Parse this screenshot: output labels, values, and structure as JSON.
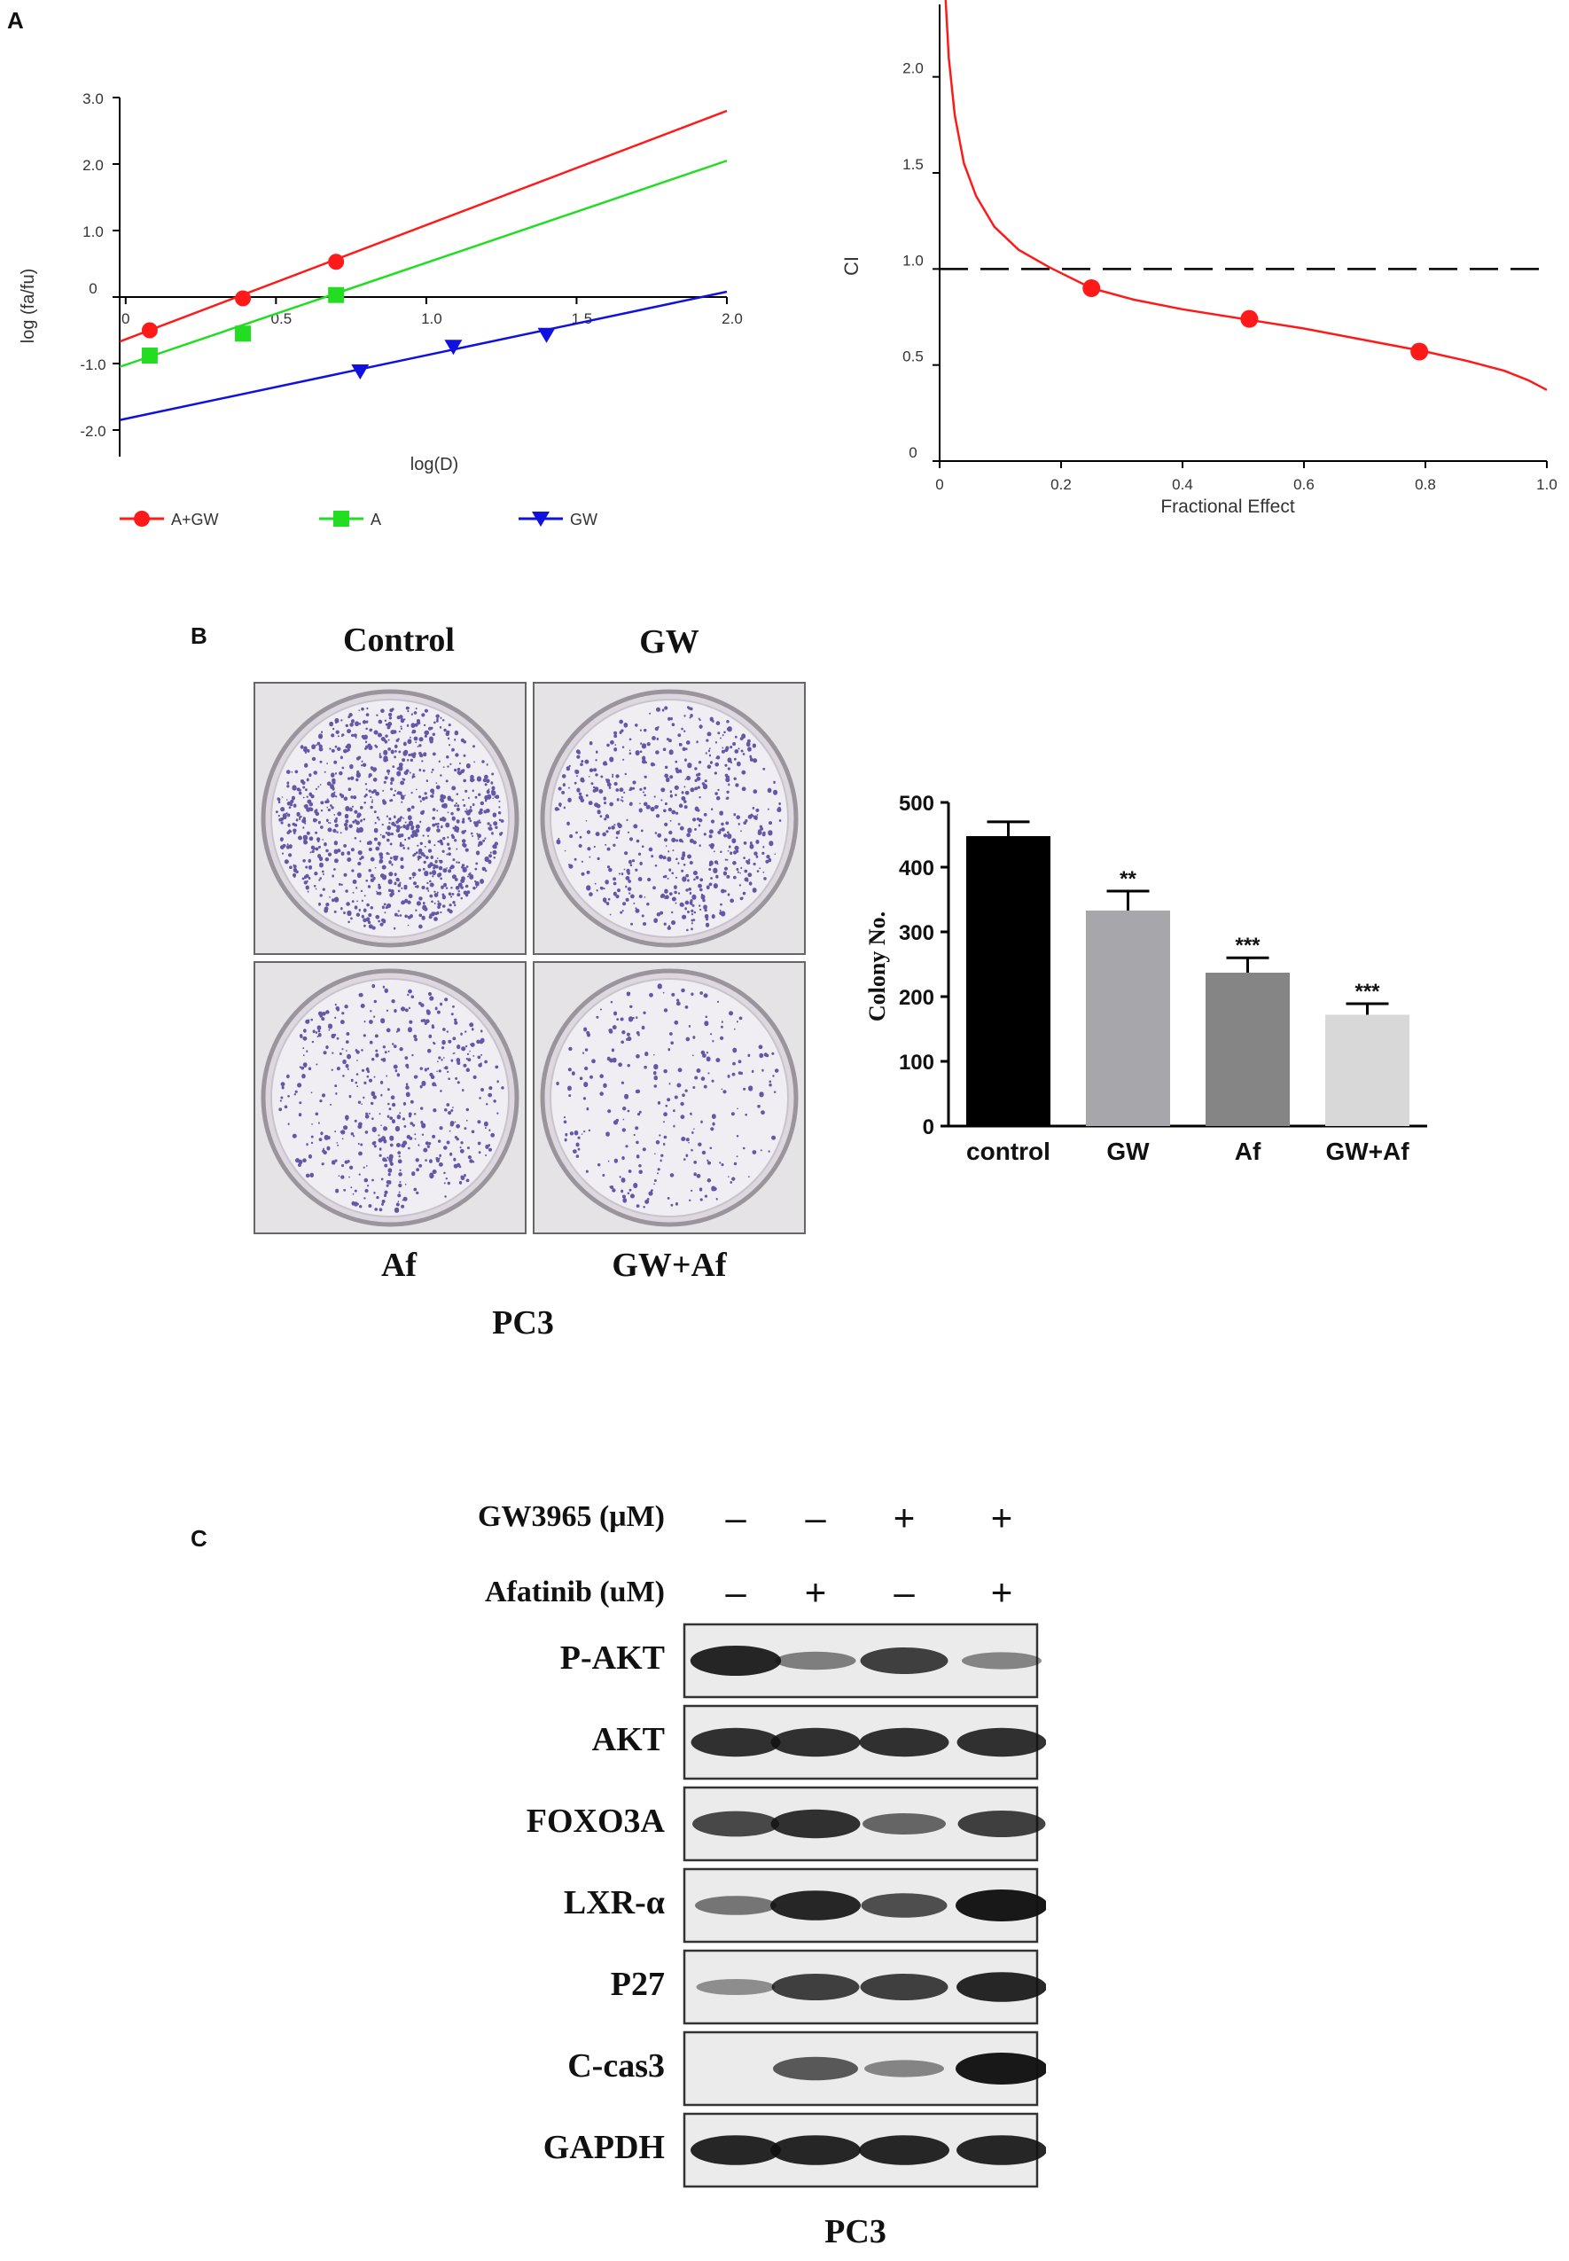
{
  "panels": {
    "a": "A",
    "b": "B",
    "c": "C"
  },
  "chart_data": [
    {
      "type": "line",
      "xlabel": "log(D)",
      "ylabel": "log (fa/fu)",
      "xlim": [
        -0.02,
        2.0
      ],
      "ylim": [
        -2.4,
        3.0
      ],
      "x_ticks": [
        "0",
        "0.5",
        "1.0",
        "1.5",
        "2.0"
      ],
      "y_ticks": [
        "3.0",
        "2.0",
        "1.0",
        "0",
        "-1.0",
        "-2.0"
      ],
      "legend_position": "bottom",
      "series": [
        {
          "name": "A+GW",
          "color": "#ff1a1a",
          "marker": "circle",
          "line": [
            [
              -0.02,
              -0.67
            ],
            [
              2.0,
              2.8
            ]
          ],
          "points": [
            [
              0.08,
              -0.5
            ],
            [
              0.39,
              -0.02
            ],
            [
              0.7,
              0.53
            ]
          ]
        },
        {
          "name": "A",
          "color": "#22dd22",
          "marker": "square",
          "line": [
            [
              -0.02,
              -1.05
            ],
            [
              2.0,
              2.05
            ]
          ],
          "points": [
            [
              0.08,
              -0.88
            ],
            [
              0.39,
              -0.55
            ],
            [
              0.7,
              0.03
            ]
          ]
        },
        {
          "name": "GW",
          "color": "#1010e0",
          "marker": "triangle-down",
          "line": [
            [
              -0.02,
              -1.85
            ],
            [
              2.0,
              0.08
            ]
          ],
          "points": [
            [
              0.78,
              -1.12
            ],
            [
              1.09,
              -0.75
            ],
            [
              1.4,
              -0.57
            ]
          ]
        }
      ]
    },
    {
      "type": "line",
      "xlabel": "Fractional Effect",
      "ylabel": "CI",
      "xlim": [
        0,
        1.0
      ],
      "ylim": [
        0,
        2.4
      ],
      "x_ticks": [
        "0",
        "0.2",
        "0.4",
        "0.6",
        "0.8",
        "1.0"
      ],
      "y_ticks": [
        "2.0",
        "1.5",
        "1.0",
        "0.5",
        "0"
      ],
      "reference_line": 1.0,
      "series": [
        {
          "color": "#ff1a1a",
          "curve": [
            [
              0.01,
              2.4
            ],
            [
              0.015,
              2.1
            ],
            [
              0.025,
              1.8
            ],
            [
              0.04,
              1.55
            ],
            [
              0.06,
              1.38
            ],
            [
              0.09,
              1.22
            ],
            [
              0.13,
              1.1
            ],
            [
              0.18,
              1.01
            ],
            [
              0.25,
              0.9
            ],
            [
              0.32,
              0.84
            ],
            [
              0.4,
              0.79
            ],
            [
              0.5,
              0.74
            ],
            [
              0.6,
              0.69
            ],
            [
              0.7,
              0.63
            ],
            [
              0.8,
              0.57
            ],
            [
              0.87,
              0.52
            ],
            [
              0.93,
              0.47
            ],
            [
              0.97,
              0.42
            ],
            [
              1.0,
              0.37
            ]
          ],
          "points": [
            [
              0.25,
              0.9
            ],
            [
              0.51,
              0.74
            ],
            [
              0.79,
              0.57
            ]
          ]
        }
      ]
    },
    {
      "type": "bar",
      "ylabel": "Colony No.",
      "categories": [
        "control",
        "GW",
        "Af",
        "GW+Af"
      ],
      "values": [
        448,
        333,
        237,
        172
      ],
      "errors": [
        22,
        30,
        23,
        17
      ],
      "annotations": [
        "",
        "**",
        "***",
        "***"
      ],
      "colors": [
        "#000000",
        "#a6a6ab",
        "#858585",
        "#d8d8d8"
      ],
      "ylim": [
        0,
        500
      ],
      "y_ticks": [
        "0",
        "100",
        "200",
        "300",
        "400",
        "500"
      ]
    }
  ],
  "colony": {
    "labels_top": [
      "Control",
      "GW"
    ],
    "labels_bottom": [
      "Af",
      "GW+Af"
    ],
    "cell_line": "PC3",
    "densities": [
      0.9,
      0.55,
      0.45,
      0.25
    ]
  },
  "western": {
    "conditions": [
      {
        "label": "GW3965 (μM)",
        "signs": [
          "–",
          "–",
          "+",
          "+"
        ]
      },
      {
        "label": "Afatinib (uM)",
        "signs": [
          "–",
          "+",
          "–",
          "+"
        ]
      }
    ],
    "rows": [
      {
        "label": "P-AKT",
        "intensity": [
          0.92,
          0.35,
          0.75,
          0.3
        ]
      },
      {
        "label": "AKT",
        "intensity": [
          0.85,
          0.85,
          0.85,
          0.85
        ]
      },
      {
        "label": "FOXO3A",
        "intensity": [
          0.7,
          0.85,
          0.5,
          0.75
        ]
      },
      {
        "label": "LXR-α",
        "intensity": [
          0.4,
          0.9,
          0.65,
          1.0
        ]
      },
      {
        "label": "P27",
        "intensity": [
          0.25,
          0.75,
          0.75,
          0.9
        ]
      },
      {
        "label": "C-cas3",
        "intensity": [
          0.0,
          0.6,
          0.3,
          1.0
        ]
      },
      {
        "label": "GAPDH",
        "intensity": [
          0.9,
          0.9,
          0.9,
          0.9
        ]
      }
    ],
    "cell_line": "PC3"
  }
}
